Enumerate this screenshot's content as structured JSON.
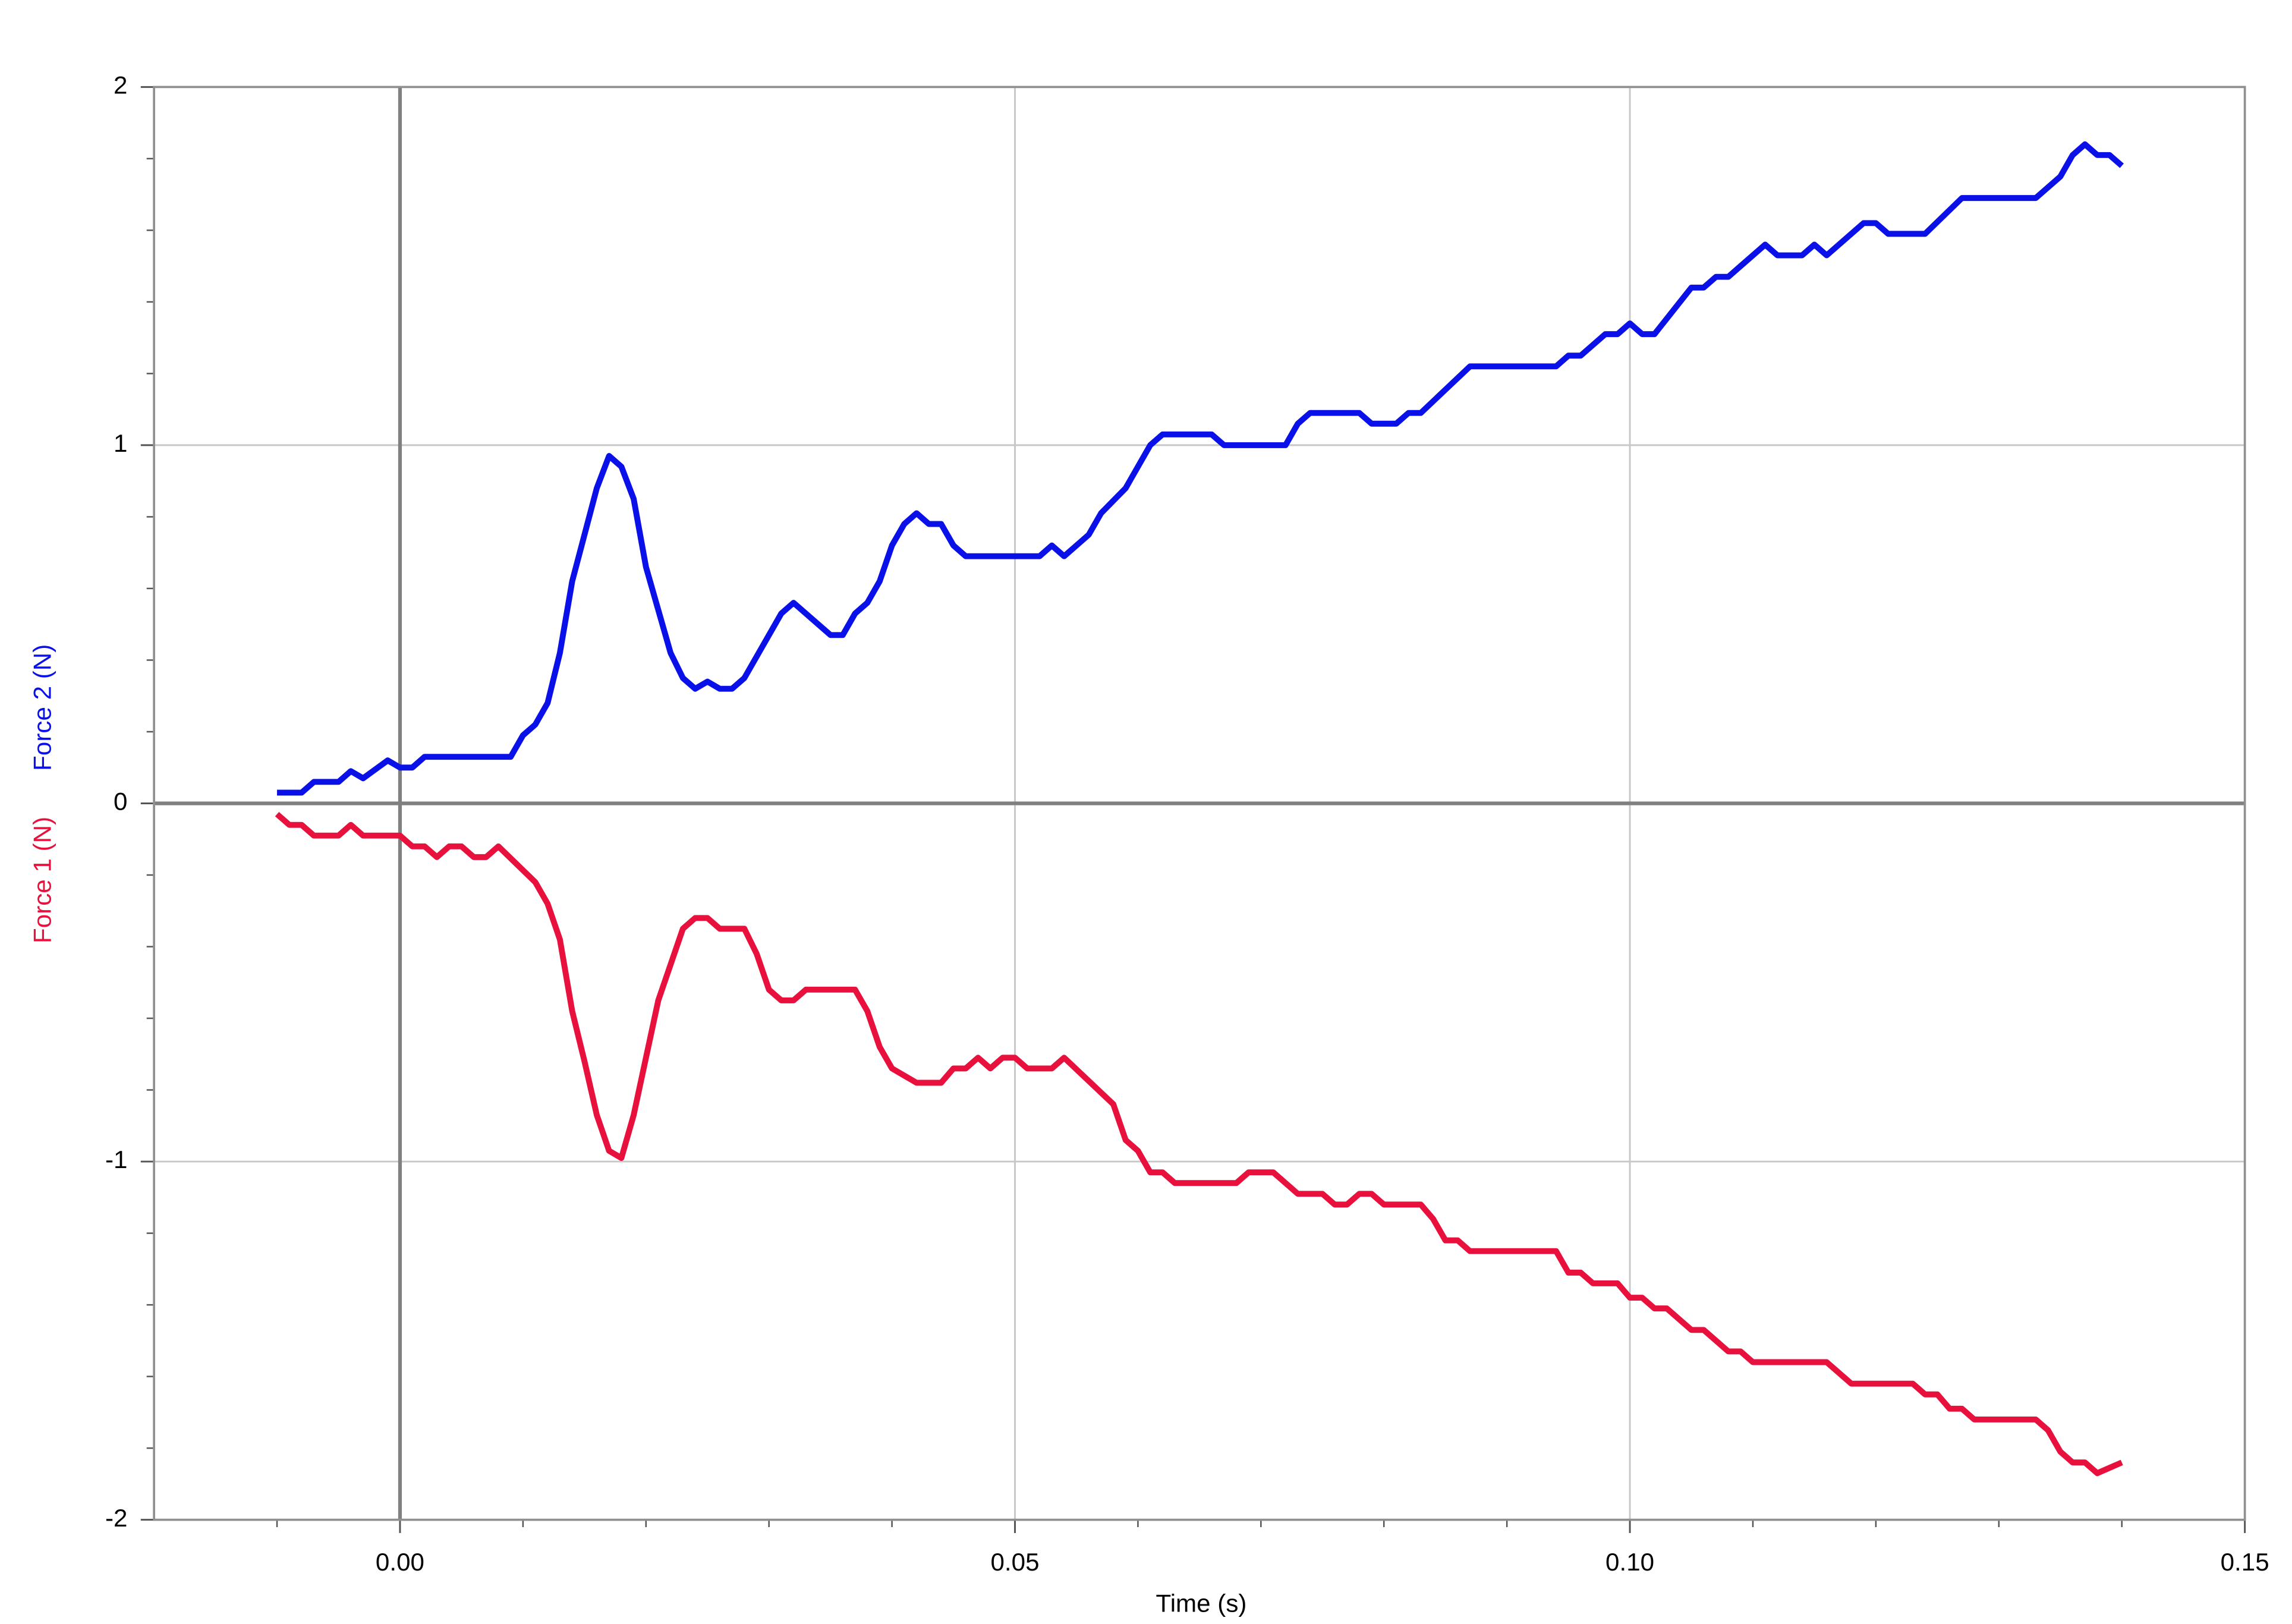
{
  "chart_data": {
    "type": "line",
    "xlabel": "Time (s)",
    "xlim": [
      -0.02,
      0.15
    ],
    "xticks": [
      {
        "value": 0,
        "label": "0.00"
      },
      {
        "value": 0.05,
        "label": "0.05"
      },
      {
        "value": 0.1,
        "label": "0.10"
      },
      {
        "value": 0.15,
        "label": "0.15"
      }
    ],
    "xminorticks": [
      -0.01,
      0.01,
      0.02,
      0.03,
      0.04,
      0.06,
      0.07,
      0.08,
      0.09,
      0.11,
      0.12,
      0.13,
      0.14
    ],
    "ylim": [
      -2,
      2
    ],
    "yticks": [
      -2,
      -1,
      0,
      1,
      2
    ],
    "yminorticks": [
      -1.8,
      -1.6,
      -1.4,
      -1.2,
      -0.8,
      -0.6,
      -0.4,
      -0.2,
      0.2,
      0.4,
      0.6,
      0.8,
      1.2,
      1.4,
      1.6,
      1.8
    ],
    "grid": true,
    "series": [
      {
        "name": "Force 1 (N)",
        "color": "#e8103c",
        "x": [
          -0.01,
          -0.009,
          -0.008,
          -0.007,
          -0.005,
          -0.004,
          -0.003,
          0.0,
          0.001,
          0.002,
          0.003,
          0.004,
          0.005,
          0.006,
          0.007,
          0.008,
          0.011,
          0.012,
          0.013,
          0.014,
          0.015,
          0.016,
          0.017,
          0.018,
          0.019,
          0.021,
          0.023,
          0.024,
          0.025,
          0.026,
          0.028,
          0.029,
          0.03,
          0.031,
          0.032,
          0.033,
          0.037,
          0.038,
          0.039,
          0.04,
          0.042,
          0.044,
          0.045,
          0.046,
          0.047,
          0.048,
          0.049,
          0.05,
          0.051,
          0.053,
          0.054,
          0.058,
          0.059,
          0.06,
          0.061,
          0.062,
          0.063,
          0.068,
          0.069,
          0.071,
          0.073,
          0.075,
          0.076,
          0.077,
          0.078,
          0.079,
          0.08,
          0.083,
          0.084,
          0.085,
          0.086,
          0.087,
          0.094,
          0.095,
          0.096,
          0.097,
          0.099,
          0.1,
          0.101,
          0.102,
          0.103,
          0.105,
          0.106,
          0.108,
          0.109,
          0.11,
          0.116,
          0.118,
          0.123,
          0.124,
          0.125,
          0.126,
          0.127,
          0.128,
          0.133,
          0.134,
          0.135,
          0.136,
          0.137,
          0.138,
          0.14
        ],
        "values": [
          -0.03,
          -0.06,
          -0.06,
          -0.09,
          -0.09,
          -0.06,
          -0.09,
          -0.09,
          -0.12,
          -0.12,
          -0.15,
          -0.12,
          -0.12,
          -0.15,
          -0.15,
          -0.12,
          -0.22,
          -0.28,
          -0.38,
          -0.58,
          -0.72,
          -0.87,
          -0.97,
          -0.99,
          -0.87,
          -0.55,
          -0.35,
          -0.32,
          -0.32,
          -0.35,
          -0.35,
          -0.42,
          -0.52,
          -0.55,
          -0.55,
          -0.52,
          -0.52,
          -0.58,
          -0.68,
          -0.74,
          -0.78,
          -0.78,
          -0.74,
          -0.74,
          -0.71,
          -0.74,
          -0.71,
          -0.71,
          -0.74,
          -0.74,
          -0.71,
          -0.84,
          -0.94,
          -0.97,
          -1.03,
          -1.03,
          -1.06,
          -1.06,
          -1.03,
          -1.03,
          -1.09,
          -1.09,
          -1.12,
          -1.12,
          -1.09,
          -1.09,
          -1.12,
          -1.12,
          -1.16,
          -1.22,
          -1.22,
          -1.25,
          -1.25,
          -1.31,
          -1.31,
          -1.34,
          -1.34,
          -1.38,
          -1.38,
          -1.41,
          -1.41,
          -1.47,
          -1.47,
          -1.53,
          -1.53,
          -1.56,
          -1.56,
          -1.62,
          -1.62,
          -1.65,
          -1.65,
          -1.69,
          -1.69,
          -1.72,
          -1.72,
          -1.75,
          -1.81,
          -1.84,
          -1.84,
          -1.87,
          -1.84
        ]
      },
      {
        "name": "Force 2 (N)",
        "color": "#0a10e8",
        "x": [
          -0.01,
          -0.008,
          -0.007,
          -0.005,
          -0.004,
          -0.003,
          -0.001,
          0.0,
          0.001,
          0.002,
          0.009,
          0.01,
          0.011,
          0.012,
          0.013,
          0.014,
          0.016,
          0.017,
          0.018,
          0.019,
          0.02,
          0.022,
          0.023,
          0.024,
          0.025,
          0.026,
          0.027,
          0.028,
          0.031,
          0.032,
          0.035,
          0.036,
          0.037,
          0.038,
          0.039,
          0.04,
          0.041,
          0.042,
          0.043,
          0.044,
          0.045,
          0.046,
          0.052,
          0.053,
          0.054,
          0.056,
          0.057,
          0.059,
          0.061,
          0.062,
          0.066,
          0.067,
          0.072,
          0.073,
          0.074,
          0.078,
          0.079,
          0.081,
          0.082,
          0.083,
          0.087,
          0.094,
          0.095,
          0.096,
          0.098,
          0.099,
          0.1,
          0.101,
          0.102,
          0.105,
          0.106,
          0.107,
          0.108,
          0.111,
          0.112,
          0.114,
          0.115,
          0.116,
          0.119,
          0.12,
          0.121,
          0.124,
          0.127,
          0.133,
          0.135,
          0.136,
          0.137,
          0.138,
          0.139,
          0.14
        ],
        "values": [
          0.03,
          0.03,
          0.06,
          0.06,
          0.09,
          0.07,
          0.12,
          0.1,
          0.1,
          0.13,
          0.13,
          0.19,
          0.22,
          0.28,
          0.42,
          0.62,
          0.88,
          0.97,
          0.94,
          0.85,
          0.66,
          0.42,
          0.35,
          0.32,
          0.34,
          0.32,
          0.32,
          0.35,
          0.53,
          0.56,
          0.47,
          0.47,
          0.53,
          0.56,
          0.62,
          0.72,
          0.78,
          0.81,
          0.78,
          0.78,
          0.72,
          0.69,
          0.69,
          0.72,
          0.69,
          0.75,
          0.81,
          0.88,
          1.0,
          1.03,
          1.03,
          1.0,
          1.0,
          1.06,
          1.09,
          1.09,
          1.06,
          1.06,
          1.09,
          1.09,
          1.22,
          1.22,
          1.25,
          1.25,
          1.31,
          1.31,
          1.34,
          1.31,
          1.31,
          1.44,
          1.44,
          1.47,
          1.47,
          1.56,
          1.53,
          1.53,
          1.56,
          1.53,
          1.62,
          1.62,
          1.59,
          1.59,
          1.69,
          1.69,
          1.75,
          1.81,
          1.84,
          1.81,
          1.81,
          1.78
        ]
      }
    ]
  }
}
